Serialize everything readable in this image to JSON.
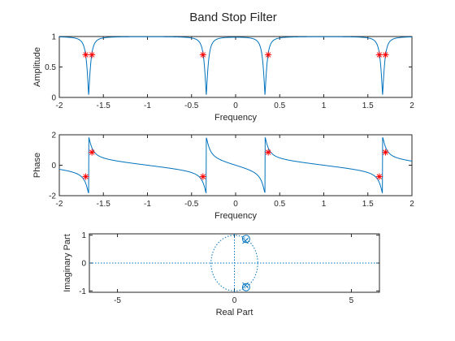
{
  "figure": {
    "title": "Band Stop Filter",
    "colors": {
      "line": "#0072bd",
      "marker": "#ff0000",
      "axis": "#262626",
      "background": "#ffffff"
    }
  },
  "chart_data": [
    {
      "type": "line",
      "name": "amplitude",
      "xlabel": "Frequency",
      "ylabel": "Amplitude",
      "xlim": [
        -2,
        2
      ],
      "ylim": [
        0,
        1
      ],
      "xticks": [
        "-2",
        "-1.5",
        "-1",
        "-0.5",
        "0",
        "0.5",
        "1",
        "1.5",
        "2"
      ],
      "yticks": [
        "0",
        "0.5",
        "1"
      ],
      "notch_centers": [
        -1.667,
        -0.333,
        0.333,
        1.667
      ],
      "notch_min": 0.03,
      "notch_half_width": 0.036,
      "markers": [
        {
          "x": -1.7,
          "y": 0.7
        },
        {
          "x": -1.63,
          "y": 0.7
        },
        {
          "x": -0.37,
          "y": 0.7
        },
        {
          "x": 0.37,
          "y": 0.7
        },
        {
          "x": 1.63,
          "y": 0.7
        },
        {
          "x": 1.7,
          "y": 0.7
        }
      ]
    },
    {
      "type": "line",
      "name": "phase",
      "xlabel": "Frequency",
      "ylabel": "Phase",
      "xlim": [
        -2,
        2
      ],
      "ylim": [
        -2,
        2
      ],
      "xticks": [
        "-2",
        "-1.5",
        "-1",
        "-0.5",
        "0",
        "0.5",
        "1",
        "1.5",
        "2"
      ],
      "yticks": [
        "-2",
        "0",
        "2"
      ],
      "jump_centers": [
        -1.667,
        -0.333,
        0.333,
        1.667
      ],
      "markers": [
        {
          "x": -1.7,
          "y": -0.75
        },
        {
          "x": -1.63,
          "y": 0.85
        },
        {
          "x": -0.37,
          "y": -0.75
        },
        {
          "x": 0.37,
          "y": 0.85
        },
        {
          "x": 1.63,
          "y": -0.75
        },
        {
          "x": 1.7,
          "y": 0.85
        }
      ]
    },
    {
      "type": "scatter",
      "name": "pole-zero",
      "xlabel": "Real Part",
      "ylabel": "Imaginary Part",
      "xlim": [
        -6.2,
        6.2
      ],
      "ylim": [
        -1.05,
        1.05
      ],
      "xticks": [
        "-5",
        "0",
        "5"
      ],
      "yticks": [
        "-1",
        "0",
        "1"
      ],
      "zeros": [
        {
          "x": 0.5,
          "y": 0.866
        },
        {
          "x": 0.5,
          "y": -0.866
        }
      ],
      "poles": [
        {
          "x": 0.47,
          "y": 0.8
        },
        {
          "x": 0.47,
          "y": -0.8
        }
      ],
      "unit_circle": true
    }
  ]
}
